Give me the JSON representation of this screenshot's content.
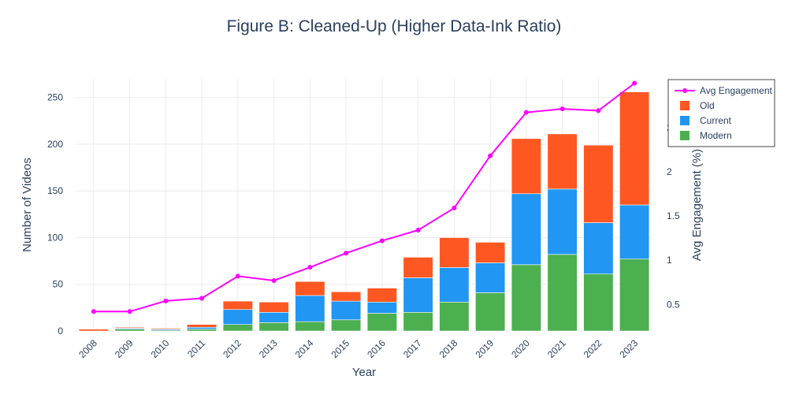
{
  "chart_data": {
    "type": "bar",
    "stacked": true,
    "title": "Figure B: Cleaned-Up (Higher Data-Ink Ratio)",
    "xlabel": "Year",
    "ylabel": "Number of Videos",
    "y2label": "Avg Engagement (%)",
    "categories": [
      "2008",
      "2009",
      "2010",
      "2011",
      "2012",
      "2013",
      "2014",
      "2015",
      "2016",
      "2017",
      "2018",
      "2019",
      "2020",
      "2021",
      "2022",
      "2023"
    ],
    "ylim": [
      0,
      270
    ],
    "y2lim": [
      0.2,
      3.05
    ],
    "yticks": [
      0,
      50,
      100,
      150,
      200,
      250
    ],
    "y2ticks": [
      0.5,
      1,
      1.5,
      2,
      2.5
    ],
    "y2tick_labels": [
      "0.5",
      "1",
      "1.5",
      "2",
      "2.5"
    ],
    "grid": true,
    "legend": "right",
    "series": [
      {
        "name": "Modern",
        "color": "#4caf50",
        "values": [
          0,
          2,
          1,
          2,
          7,
          9,
          10,
          12,
          19,
          20,
          31,
          41,
          71,
          82,
          61,
          77
        ]
      },
      {
        "name": "Current",
        "color": "#2196f3",
        "values": [
          0,
          1,
          1,
          2,
          16,
          11,
          28,
          20,
          12,
          37,
          37,
          32,
          76,
          70,
          55,
          58
        ]
      },
      {
        "name": "Old",
        "color": "#ff5722",
        "values": [
          2,
          1,
          1,
          3,
          9,
          11,
          15,
          10,
          15,
          22,
          32,
          22,
          59,
          59,
          83,
          121
        ]
      }
    ],
    "line": {
      "name": "Avg Engagement",
      "color": "#ff00ff",
      "values": [
        0.42,
        0.42,
        0.54,
        0.57,
        0.82,
        0.77,
        0.92,
        1.08,
        1.22,
        1.34,
        1.59,
        2.18,
        2.67,
        2.71,
        2.69,
        3.0
      ]
    },
    "legend_order": [
      "Avg Engagement",
      "Old",
      "Current",
      "Modern"
    ]
  }
}
